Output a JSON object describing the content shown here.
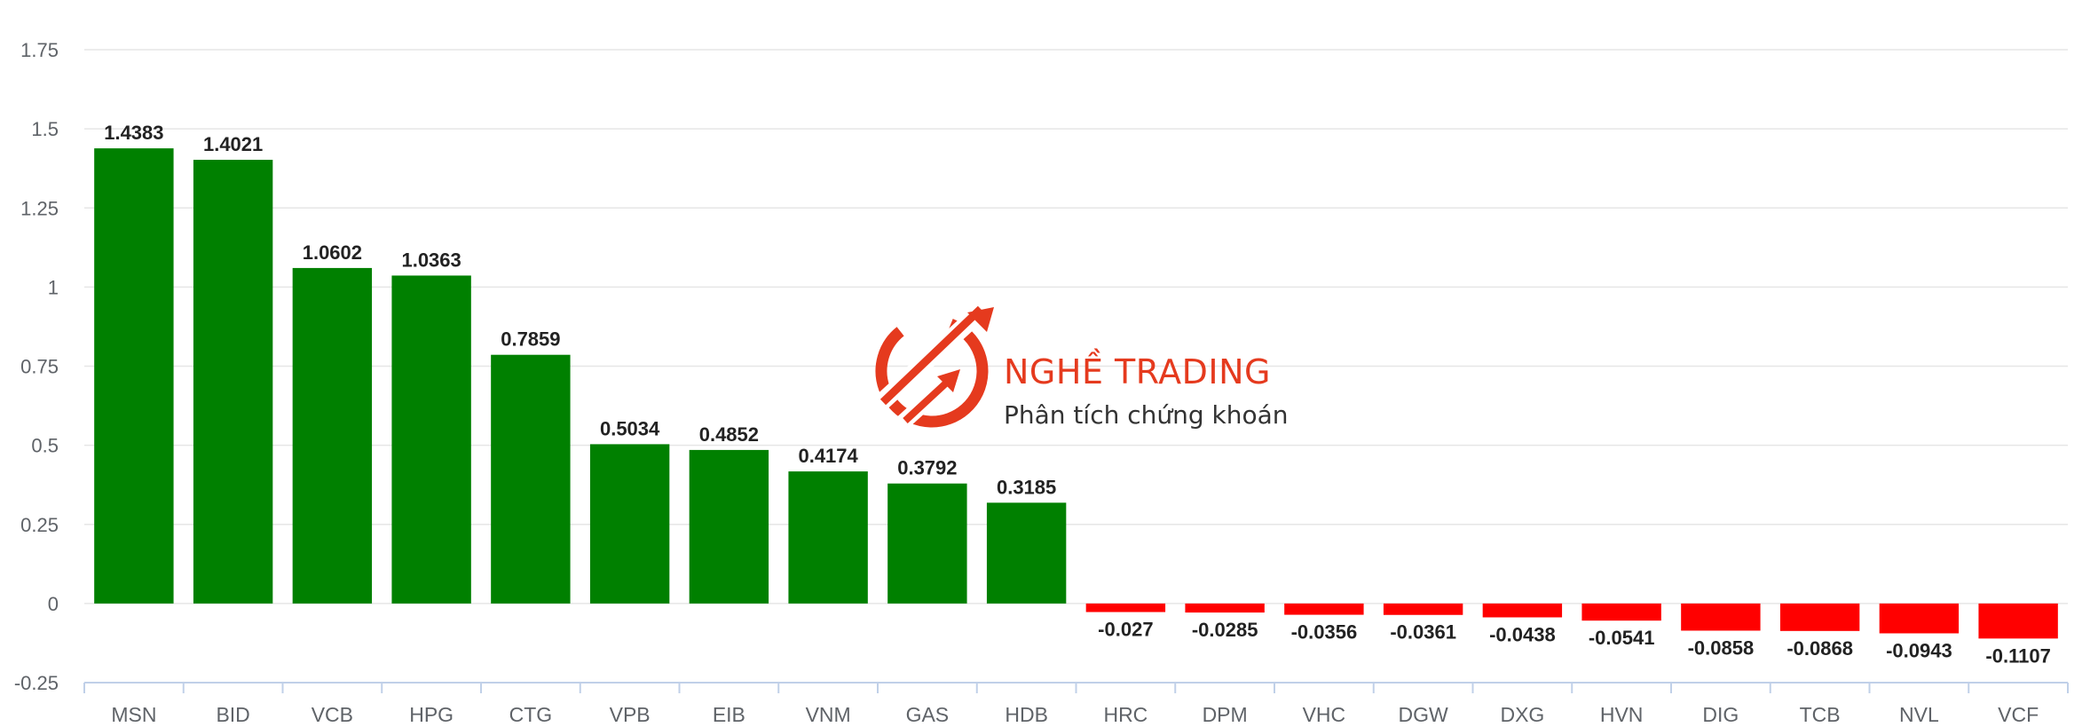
{
  "chart_data": {
    "type": "bar",
    "categories": [
      "MSN",
      "BID",
      "VCB",
      "HPG",
      "CTG",
      "VPB",
      "EIB",
      "VNM",
      "GAS",
      "HDB",
      "HRC",
      "DPM",
      "VHC",
      "DGW",
      "DXG",
      "HVN",
      "DIG",
      "TCB",
      "NVL",
      "VCF"
    ],
    "values": [
      1.4383,
      1.4021,
      1.0602,
      1.0363,
      0.7859,
      0.5034,
      0.4852,
      0.4174,
      0.3792,
      0.3185,
      -0.027,
      -0.0285,
      -0.0356,
      -0.0361,
      -0.0438,
      -0.0541,
      -0.0858,
      -0.0868,
      -0.0943,
      -0.1107
    ],
    "data_labels": [
      "1.4383",
      "1.4021",
      "1.0602",
      "1.0363",
      "0.7859",
      "0.5034",
      "0.4852",
      "0.4174",
      "0.3792",
      "0.3185",
      "-0.027",
      "-0.0285",
      "-0.0356",
      "-0.0361",
      "-0.0438",
      "-0.0541",
      "-0.0858",
      "-0.0868",
      "-0.0943",
      "-0.1107"
    ],
    "y_ticks": [
      -0.25,
      0,
      0.25,
      0.5,
      0.75,
      1,
      1.25,
      1.5,
      1.75
    ],
    "y_tick_labels": [
      "-0.25",
      "0",
      "0.25",
      "0.5",
      "0.75",
      "1",
      "1.25",
      "1.5",
      "1.75"
    ],
    "ylim": [
      -0.25,
      1.75
    ],
    "title": "",
    "xlabel": "",
    "ylabel": "",
    "grid": true,
    "colors": {
      "positive": "#008000",
      "negative": "#ff0000",
      "grid": "#e6e6e6",
      "axis": "#c0d0e8"
    }
  },
  "watermark": {
    "title": "NGHỀ TRADING",
    "subtitle": "Phân tích chứng khoán",
    "icon": "trading-arrows-logo",
    "color": "#e53a1e"
  }
}
